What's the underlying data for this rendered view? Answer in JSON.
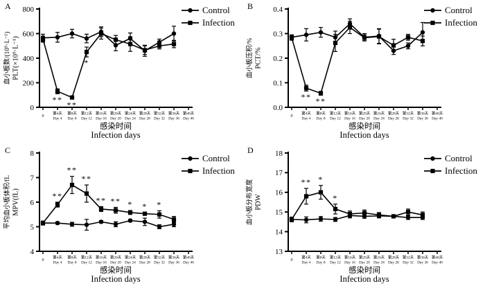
{
  "figure": {
    "panel_letters": [
      "A",
      "B",
      "C",
      "D"
    ],
    "legend": [
      {
        "label": "Control",
        "marker": "circle"
      },
      {
        "label": "Infection",
        "marker": "square"
      }
    ],
    "x_axis": {
      "title_cn": "感染时间",
      "title_en": "Infection days",
      "ticks": [
        {
          "cn": "0",
          "en": ""
        },
        {
          "cn": "第4天",
          "en": "Day 4"
        },
        {
          "cn": "第8天",
          "en": "Day 8"
        },
        {
          "cn": "第12天",
          "en": "Day 12"
        },
        {
          "cn": "第16天",
          "en": "Day 16"
        },
        {
          "cn": "第20天",
          "en": "Day 20"
        },
        {
          "cn": "第24天",
          "en": "Day 24"
        },
        {
          "cn": "第28天",
          "en": "Day 28"
        },
        {
          "cn": "第32天",
          "en": "Day 32"
        },
        {
          "cn": "第36天",
          "en": "Day 36"
        },
        {
          "cn": "第40天",
          "en": "Day 40"
        }
      ]
    },
    "colors": {
      "foreground": "#000000",
      "background": "#ffffff"
    }
  },
  "chart_data": [
    {
      "type": "line",
      "panel": "A",
      "ylabel_cn": "血小板数/(10⁹·L⁻¹)",
      "ylabel_en": "PLT(×10⁹·L⁻¹)",
      "ylim": [
        0,
        800
      ],
      "yticks": [
        0,
        200,
        400,
        600,
        800
      ],
      "ytick_labels": [
        "0",
        "200",
        "400",
        "600",
        "800"
      ],
      "x_days": [
        0,
        4,
        8,
        12,
        16,
        20,
        24,
        28,
        32,
        36
      ],
      "series": [
        {
          "name": "Control",
          "marker": "circle",
          "values": [
            565,
            570,
            600,
            560,
            615,
            505,
            560,
            460,
            530,
            600
          ],
          "errors": [
            30,
            40,
            35,
            35,
            40,
            45,
            45,
            45,
            25,
            60
          ]
        },
        {
          "name": "Infection",
          "marker": "square",
          "values": [
            555,
            130,
            80,
            450,
            600,
            550,
            515,
            465,
            500,
            515
          ],
          "errors": [
            25,
            20,
            12,
            40,
            45,
            35,
            60,
            35,
            25,
            30
          ]
        }
      ],
      "annotations": [
        {
          "index": 1,
          "text": "**",
          "position": "below"
        },
        {
          "index": 2,
          "text": "**",
          "position": "below"
        },
        {
          "index": 3,
          "text": "*",
          "position": "below"
        }
      ]
    },
    {
      "type": "line",
      "panel": "B",
      "ylabel_cn": "血小板压积/%",
      "ylabel_en": "PCT/%",
      "ylim": [
        0,
        0.4
      ],
      "yticks": [
        0,
        0.1,
        0.2,
        0.3,
        0.4
      ],
      "ytick_labels": [
        "0.0",
        "0.1",
        "0.2",
        "0.3",
        "0.4"
      ],
      "x_days": [
        0,
        4,
        8,
        12,
        16,
        20,
        24,
        28,
        32,
        36
      ],
      "series": [
        {
          "name": "Control",
          "marker": "circle",
          "values": [
            0.285,
            0.295,
            0.305,
            0.285,
            0.34,
            0.285,
            0.29,
            0.23,
            0.25,
            0.305
          ],
          "errors": [
            0.01,
            0.025,
            0.02,
            0.025,
            0.02,
            0.015,
            0.03,
            0.015,
            0.012,
            0.04
          ]
        },
        {
          "name": "Infection",
          "marker": "square",
          "values": [
            0.283,
            0.078,
            0.057,
            0.262,
            0.325,
            0.283,
            0.288,
            0.252,
            0.285,
            0.27
          ],
          "errors": [
            0.01,
            0.012,
            0.008,
            0.035,
            0.025,
            0.012,
            0.03,
            0.025,
            0.012,
            0.02
          ]
        }
      ],
      "annotations": [
        {
          "index": 1,
          "text": "**",
          "position": "below"
        },
        {
          "index": 2,
          "text": "**",
          "position": "below"
        }
      ]
    },
    {
      "type": "line",
      "panel": "C",
      "ylabel_cn": "平均血小板体积/fL",
      "ylabel_en": "MPV(fL)",
      "ylim": [
        4,
        8
      ],
      "yticks": [
        4,
        5,
        6,
        7,
        8
      ],
      "ytick_labels": [
        "4",
        "5",
        "6",
        "7",
        "8"
      ],
      "x_days": [
        0,
        4,
        8,
        12,
        16,
        20,
        24,
        28,
        32,
        36
      ],
      "series": [
        {
          "name": "Control",
          "marker": "circle",
          "values": [
            5.15,
            5.15,
            5.1,
            5.08,
            5.2,
            5.1,
            5.25,
            5.2,
            5.0,
            5.1
          ],
          "errors": [
            0.08,
            0.05,
            0.08,
            0.22,
            0.05,
            0.1,
            0.05,
            0.15,
            0.08,
            0.1
          ]
        },
        {
          "name": "Infection",
          "marker": "square",
          "values": [
            5.15,
            5.9,
            6.7,
            6.35,
            5.72,
            5.67,
            5.58,
            5.53,
            5.5,
            5.3
          ],
          "errors": [
            0.08,
            0.1,
            0.35,
            0.35,
            0.1,
            0.12,
            0.08,
            0.05,
            0.15,
            0.12
          ]
        }
      ],
      "annotations": [
        {
          "index": 1,
          "text": "**",
          "position": "above"
        },
        {
          "index": 2,
          "text": "**",
          "position": "above"
        },
        {
          "index": 3,
          "text": "**",
          "position": "above"
        },
        {
          "index": 4,
          "text": "**",
          "position": "above"
        },
        {
          "index": 5,
          "text": "**",
          "position": "above"
        },
        {
          "index": 6,
          "text": "*",
          "position": "above"
        },
        {
          "index": 7,
          "text": "*",
          "position": "above"
        },
        {
          "index": 8,
          "text": "*",
          "position": "above"
        }
      ]
    },
    {
      "type": "line",
      "panel": "D",
      "ylabel_cn": "血小板分布宽度",
      "ylabel_en": "PDW",
      "ylim": [
        13,
        18
      ],
      "yticks": [
        13,
        14,
        15,
        16,
        17,
        18
      ],
      "ytick_labels": [
        "13",
        "14",
        "15",
        "16",
        "17",
        "18"
      ],
      "x_days": [
        0,
        4,
        8,
        12,
        16,
        20,
        24,
        28,
        32,
        36
      ],
      "series": [
        {
          "name": "Control",
          "marker": "circle",
          "values": [
            14.62,
            14.6,
            14.65,
            14.62,
            14.82,
            14.78,
            14.8,
            14.78,
            14.72,
            14.72
          ],
          "errors": [
            0.12,
            0.15,
            0.12,
            0.1,
            0.12,
            0.1,
            0.1,
            0.08,
            0.1,
            0.1
          ]
        },
        {
          "name": "Infection",
          "marker": "square",
          "values": [
            14.62,
            15.8,
            16.0,
            15.15,
            14.9,
            14.95,
            14.85,
            14.78,
            15.0,
            14.85
          ],
          "errors": [
            0.12,
            0.4,
            0.35,
            0.25,
            0.15,
            0.15,
            0.12,
            0.08,
            0.15,
            0.15
          ]
        }
      ],
      "annotations": [
        {
          "index": 1,
          "text": "**",
          "position": "above"
        },
        {
          "index": 2,
          "text": "*",
          "position": "above"
        },
        {
          "index": 3,
          "text": "*",
          "position": "above"
        }
      ]
    }
  ]
}
